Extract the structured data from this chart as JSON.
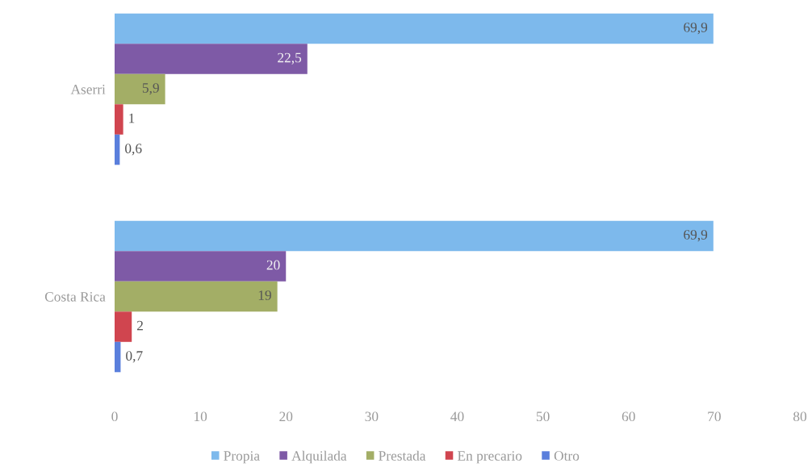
{
  "chart_data": {
    "type": "bar",
    "orientation": "horizontal",
    "categories": [
      "Aserri",
      "Costa Rica"
    ],
    "series": [
      {
        "name": "Propia",
        "color": "#7db9ec",
        "values": [
          69.9,
          69.9
        ],
        "value_labels": [
          "69,9",
          "69,9"
        ]
      },
      {
        "name": "Alquilada",
        "color": "#7e5aa6",
        "values": [
          22.5,
          20
        ],
        "value_labels": [
          "22,5",
          "20"
        ]
      },
      {
        "name": "Prestada",
        "color": "#a3ae66",
        "values": [
          5.9,
          19
        ],
        "value_labels": [
          "5,9",
          "19"
        ]
      },
      {
        "name": "En precario",
        "color": "#d0454f",
        "values": [
          1,
          2
        ],
        "value_labels": [
          "1",
          "2"
        ]
      },
      {
        "name": "Otro",
        "color": "#5a7fdc",
        "values": [
          0.6,
          0.7
        ],
        "value_labels": [
          "0,6",
          "0,7"
        ]
      }
    ],
    "xlim": [
      0,
      80
    ],
    "xticks": [
      0,
      10,
      20,
      30,
      40,
      50,
      60,
      70,
      80
    ],
    "legend": "bottom"
  }
}
